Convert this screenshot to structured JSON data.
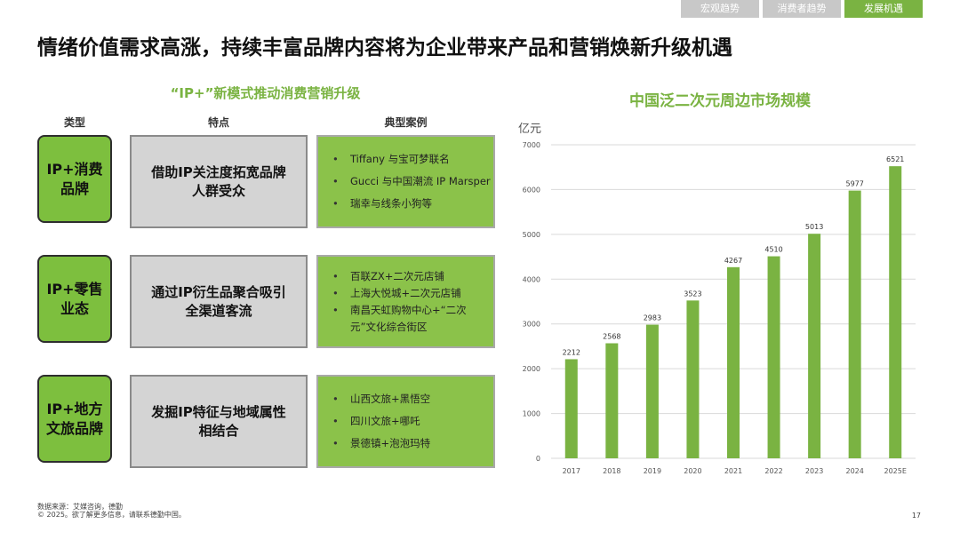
{
  "tabs": [
    {
      "label": "宏观趋势",
      "active": false
    },
    {
      "label": "消费者趋势",
      "active": false
    },
    {
      "label": "发展机遇",
      "active": true
    }
  ],
  "title": "情绪价值需求高涨，持续丰富品牌内容将为企业带来产品和营销焕新升级机遇",
  "left": {
    "title": "“IP+”新模式推动消费营销升级",
    "headers": {
      "type": "类型",
      "feature": "特点",
      "cases": "典型案例"
    },
    "rows": [
      {
        "type": "IP+消费品牌",
        "feature": "借助IP关注度拓宽品牌人群受众",
        "cases": [
          "Tiffany 与宝可梦联名",
          "Gucci 与中国潮流 IP Marsper",
          "瑞幸与线条小狗等"
        ]
      },
      {
        "type": "IP+零售业态",
        "feature": "通过IP衍生品聚合吸引全渠道客流",
        "cases": [
          "百联ZX+二次元店铺",
          "上海大悦城+二次元店铺",
          "南昌天虹购物中心+“二次元”文化综合街区"
        ]
      },
      {
        "type": "IP+地方文旅品牌",
        "feature": "发掘IP特征与地域属性相结合",
        "cases": [
          "山西文旅+黑悟空",
          "四川文旅+哪吒",
          "景德镇+泡泡玛特"
        ]
      }
    ]
  },
  "chart_data": {
    "type": "bar",
    "title": "中国泛二次元周边市场规模",
    "ylabel": "亿元",
    "categories": [
      "2017",
      "2018",
      "2019",
      "2020",
      "2021",
      "2022",
      "2023",
      "2024",
      "2025E"
    ],
    "values": [
      2212,
      2568,
      2983,
      3523,
      4267,
      4510,
      5013,
      5977,
      6521
    ],
    "ylim": [
      0,
      7000
    ],
    "yticks": [
      0,
      1000,
      2000,
      3000,
      4000,
      5000,
      6000,
      7000
    ],
    "grid": true,
    "bar_color": "#7ab342"
  },
  "footer": {
    "source": "数据来源：艾媒咨询，德勤",
    "copyright": "© 2025。欲了解更多信息，请联系德勤中国。",
    "page": "17"
  }
}
